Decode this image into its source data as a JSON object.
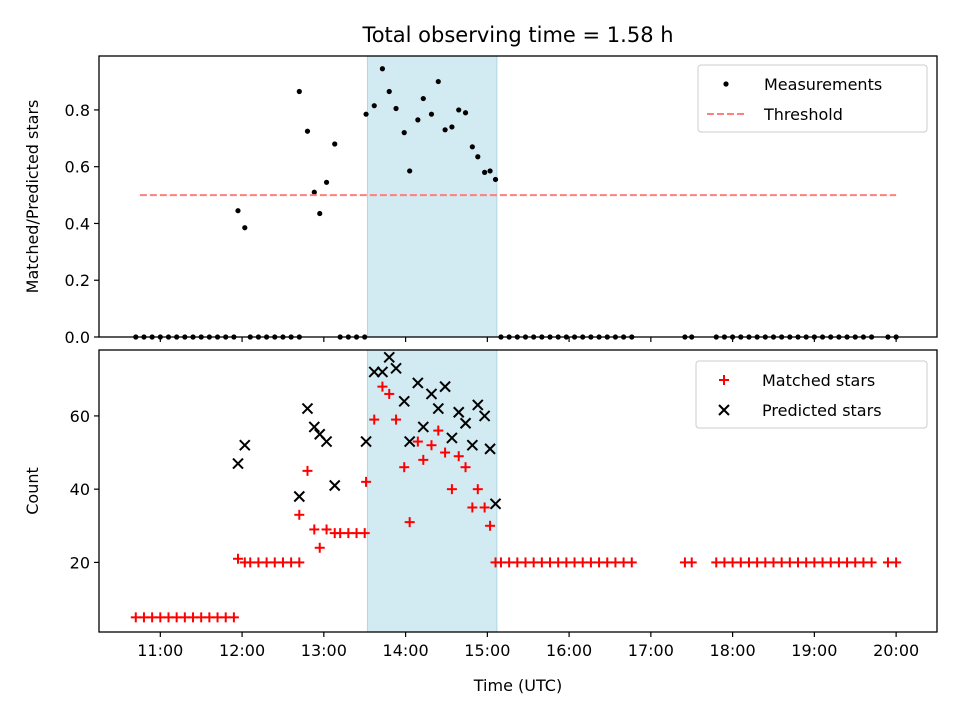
{
  "figure": {
    "title": "Total observing time = 1.58 h"
  },
  "chart_data": [
    {
      "type": "scatter",
      "ylabel": "Matched/Predicted stars",
      "xlabel": "",
      "xlim": [
        "10:15",
        "20:30"
      ],
      "ylim": [
        0,
        0.99
      ],
      "yticks": [
        0.0,
        0.2,
        0.4,
        0.6,
        0.8
      ],
      "ytick_labels": [
        "0.0",
        "0.2",
        "0.4",
        "0.6",
        "0.8"
      ],
      "highlight_span": {
        "x0": "13:32",
        "x1": "15:07",
        "color": "#add8e6"
      },
      "legend_position": "top-right",
      "series": [
        {
          "name": "Measurements",
          "marker": "dot",
          "color": "#000000",
          "points": [
            [
              "10:42",
              0
            ],
            [
              "10:48",
              0
            ],
            [
              "10:54",
              0
            ],
            [
              "11:00",
              0
            ],
            [
              "11:06",
              0
            ],
            [
              "11:12",
              0
            ],
            [
              "11:18",
              0
            ],
            [
              "11:24",
              0
            ],
            [
              "11:30",
              0
            ],
            [
              "11:36",
              0
            ],
            [
              "11:42",
              0
            ],
            [
              "11:48",
              0
            ],
            [
              "11:54",
              0
            ],
            [
              "11:57",
              0.445
            ],
            [
              "12:02",
              0.385
            ],
            [
              "12:06",
              0
            ],
            [
              "12:12",
              0
            ],
            [
              "12:18",
              0
            ],
            [
              "12:24",
              0
            ],
            [
              "12:30",
              0
            ],
            [
              "12:36",
              0
            ],
            [
              "12:42",
              0
            ],
            [
              "12:42",
              0.865
            ],
            [
              "12:48",
              0.725
            ],
            [
              "12:53",
              0.51
            ],
            [
              "12:57",
              0.435
            ],
            [
              "13:02",
              0.545
            ],
            [
              "13:08",
              0.68
            ],
            [
              "13:12",
              0
            ],
            [
              "13:18",
              0
            ],
            [
              "13:24",
              0
            ],
            [
              "13:30",
              0
            ],
            [
              "13:31",
              0.785
            ],
            [
              "13:37",
              0.815
            ],
            [
              "13:43",
              0.945
            ],
            [
              "13:48",
              0.865
            ],
            [
              "13:53",
              0.805
            ],
            [
              "13:59",
              0.72
            ],
            [
              "14:03",
              0.585
            ],
            [
              "14:09",
              0.765
            ],
            [
              "14:13",
              0.84
            ],
            [
              "14:19",
              0.785
            ],
            [
              "14:24",
              0.9
            ],
            [
              "14:29",
              0.73
            ],
            [
              "14:34",
              0.74
            ],
            [
              "14:39",
              0.8
            ],
            [
              "14:44",
              0.79
            ],
            [
              "14:49",
              0.67
            ],
            [
              "14:53",
              0.635
            ],
            [
              "14:58",
              0.58
            ],
            [
              "15:02",
              0.585
            ],
            [
              "15:06",
              0.555
            ],
            [
              "15:10",
              0
            ],
            [
              "15:16",
              0
            ],
            [
              "15:22",
              0
            ],
            [
              "15:28",
              0
            ],
            [
              "15:34",
              0
            ],
            [
              "15:40",
              0
            ],
            [
              "15:46",
              0
            ],
            [
              "15:52",
              0
            ],
            [
              "15:58",
              0
            ],
            [
              "16:04",
              0
            ],
            [
              "16:10",
              0
            ],
            [
              "16:16",
              0
            ],
            [
              "16:22",
              0
            ],
            [
              "16:28",
              0
            ],
            [
              "16:34",
              0
            ],
            [
              "16:40",
              0
            ],
            [
              "16:46",
              0
            ],
            [
              "17:25",
              0
            ],
            [
              "17:30",
              0
            ],
            [
              "17:48",
              0
            ],
            [
              "17:54",
              0
            ],
            [
              "18:00",
              0
            ],
            [
              "18:06",
              0
            ],
            [
              "18:12",
              0
            ],
            [
              "18:18",
              0
            ],
            [
              "18:24",
              0
            ],
            [
              "18:30",
              0
            ],
            [
              "18:36",
              0
            ],
            [
              "18:42",
              0
            ],
            [
              "18:48",
              0
            ],
            [
              "18:54",
              0
            ],
            [
              "19:00",
              0
            ],
            [
              "19:06",
              0
            ],
            [
              "19:12",
              0
            ],
            [
              "19:18",
              0
            ],
            [
              "19:24",
              0
            ],
            [
              "19:30",
              0
            ],
            [
              "19:36",
              0
            ],
            [
              "19:42",
              0
            ],
            [
              "19:54",
              0
            ],
            [
              "20:00",
              0
            ]
          ]
        },
        {
          "name": "Threshold",
          "marker": "dashed-line",
          "color": "#ff7f7f",
          "points": [
            [
              "10:45",
              0.5
            ],
            [
              "20:00",
              0.5
            ]
          ]
        }
      ]
    },
    {
      "type": "scatter",
      "ylabel": "Count",
      "xlabel": "Time (UTC)",
      "xlim": [
        "10:15",
        "20:30"
      ],
      "ylim": [
        1,
        78
      ],
      "yticks": [
        20,
        40,
        60
      ],
      "ytick_labels": [
        "20",
        "40",
        "60"
      ],
      "xticks": [
        "11:00",
        "12:00",
        "13:00",
        "14:00",
        "15:00",
        "16:00",
        "17:00",
        "18:00",
        "19:00",
        "20:00"
      ],
      "xtick_labels": [
        "11:00",
        "12:00",
        "13:00",
        "14:00",
        "15:00",
        "16:00",
        "17:00",
        "18:00",
        "19:00",
        "20:00"
      ],
      "highlight_span": {
        "x0": "13:32",
        "x1": "15:07",
        "color": "#add8e6"
      },
      "legend_position": "top-right",
      "series": [
        {
          "name": "Matched stars",
          "marker": "plus",
          "color": "#ff0000",
          "points": [
            [
              "10:42",
              5
            ],
            [
              "10:48",
              5
            ],
            [
              "10:54",
              5
            ],
            [
              "11:00",
              5
            ],
            [
              "11:06",
              5
            ],
            [
              "11:12",
              5
            ],
            [
              "11:18",
              5
            ],
            [
              "11:24",
              5
            ],
            [
              "11:30",
              5
            ],
            [
              "11:36",
              5
            ],
            [
              "11:42",
              5
            ],
            [
              "11:48",
              5
            ],
            [
              "11:54",
              5
            ],
            [
              "11:57",
              21
            ],
            [
              "12:02",
              20
            ],
            [
              "12:06",
              20
            ],
            [
              "12:12",
              20
            ],
            [
              "12:18",
              20
            ],
            [
              "12:24",
              20
            ],
            [
              "12:30",
              20
            ],
            [
              "12:36",
              20
            ],
            [
              "12:42",
              20
            ],
            [
              "12:42",
              33
            ],
            [
              "12:48",
              45
            ],
            [
              "12:53",
              29
            ],
            [
              "12:57",
              24
            ],
            [
              "13:02",
              29
            ],
            [
              "13:08",
              28
            ],
            [
              "13:12",
              28
            ],
            [
              "13:18",
              28
            ],
            [
              "13:24",
              28
            ],
            [
              "13:30",
              28
            ],
            [
              "13:31",
              42
            ],
            [
              "13:37",
              59
            ],
            [
              "13:43",
              68
            ],
            [
              "13:48",
              66
            ],
            [
              "13:53",
              59
            ],
            [
              "13:59",
              46
            ],
            [
              "14:03",
              31
            ],
            [
              "14:09",
              53
            ],
            [
              "14:13",
              48
            ],
            [
              "14:19",
              52
            ],
            [
              "14:24",
              56
            ],
            [
              "14:29",
              50
            ],
            [
              "14:34",
              40
            ],
            [
              "14:39",
              49
            ],
            [
              "14:44",
              46
            ],
            [
              "14:49",
              35
            ],
            [
              "14:53",
              40
            ],
            [
              "14:58",
              35
            ],
            [
              "15:02",
              30
            ],
            [
              "15:06",
              20
            ],
            [
              "15:10",
              20
            ],
            [
              "15:16",
              20
            ],
            [
              "15:22",
              20
            ],
            [
              "15:28",
              20
            ],
            [
              "15:34",
              20
            ],
            [
              "15:40",
              20
            ],
            [
              "15:46",
              20
            ],
            [
              "15:52",
              20
            ],
            [
              "15:58",
              20
            ],
            [
              "16:04",
              20
            ],
            [
              "16:10",
              20
            ],
            [
              "16:16",
              20
            ],
            [
              "16:22",
              20
            ],
            [
              "16:28",
              20
            ],
            [
              "16:34",
              20
            ],
            [
              "16:40",
              20
            ],
            [
              "16:46",
              20
            ],
            [
              "17:25",
              20
            ],
            [
              "17:30",
              20
            ],
            [
              "17:48",
              20
            ],
            [
              "17:54",
              20
            ],
            [
              "18:00",
              20
            ],
            [
              "18:06",
              20
            ],
            [
              "18:12",
              20
            ],
            [
              "18:18",
              20
            ],
            [
              "18:24",
              20
            ],
            [
              "18:30",
              20
            ],
            [
              "18:36",
              20
            ],
            [
              "18:42",
              20
            ],
            [
              "18:48",
              20
            ],
            [
              "18:54",
              20
            ],
            [
              "19:00",
              20
            ],
            [
              "19:06",
              20
            ],
            [
              "19:12",
              20
            ],
            [
              "19:18",
              20
            ],
            [
              "19:24",
              20
            ],
            [
              "19:30",
              20
            ],
            [
              "19:36",
              20
            ],
            [
              "19:42",
              20
            ],
            [
              "19:54",
              20
            ],
            [
              "20:00",
              20
            ]
          ]
        },
        {
          "name": "Predicted stars",
          "marker": "cross",
          "color": "#000000",
          "points": [
            [
              "11:57",
              47
            ],
            [
              "12:02",
              52
            ],
            [
              "12:42",
              38
            ],
            [
              "12:48",
              62
            ],
            [
              "12:53",
              57
            ],
            [
              "12:57",
              55
            ],
            [
              "13:02",
              53
            ],
            [
              "13:08",
              41
            ],
            [
              "13:31",
              53
            ],
            [
              "13:37",
              72
            ],
            [
              "13:43",
              72
            ],
            [
              "13:48",
              76
            ],
            [
              "13:53",
              73
            ],
            [
              "13:59",
              64
            ],
            [
              "14:03",
              53
            ],
            [
              "14:09",
              69
            ],
            [
              "14:13",
              57
            ],
            [
              "14:19",
              66
            ],
            [
              "14:24",
              62
            ],
            [
              "14:29",
              68
            ],
            [
              "14:34",
              54
            ],
            [
              "14:39",
              61
            ],
            [
              "14:44",
              58
            ],
            [
              "14:49",
              52
            ],
            [
              "14:53",
              63
            ],
            [
              "14:58",
              60
            ],
            [
              "15:02",
              51
            ],
            [
              "15:06",
              36
            ]
          ]
        }
      ]
    }
  ]
}
